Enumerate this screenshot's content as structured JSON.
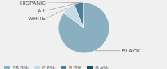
{
  "chart_data": {
    "type": "pie",
    "categories": [
      "BLACK",
      "WHITE",
      "A.I.",
      "HISPANIC"
    ],
    "values": [
      85.3,
      8.6,
      5.8,
      0.4
    ],
    "value_labels": [
      "85.3%",
      "8.6%",
      "5.8%",
      "0.4%"
    ],
    "colors": [
      "#8aafc0",
      "#c5dce6",
      "#4d7d96",
      "#1f4d66"
    ],
    "legend": "bottom"
  }
}
